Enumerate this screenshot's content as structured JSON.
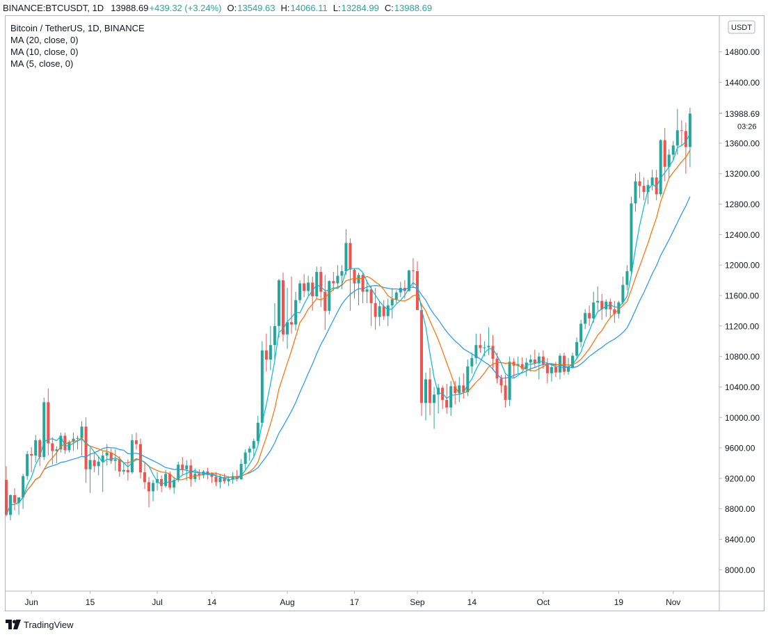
{
  "header": {
    "symbol": "BINANCE:BTCUSDT, 1D",
    "price": "13988.69",
    "change": "+439.32 (+3.24%)",
    "o_label": "O:",
    "o_value": "13549.63",
    "h_label": "H:",
    "h_value": "14066.11",
    "l_label": "L:",
    "l_value": "13284.99",
    "c_label": "C:",
    "c_value": "13988.69"
  },
  "legend": {
    "title": "Bitcoin / TetherUS, 1D, BINANCE",
    "ma20": "MA (20, close, 0)",
    "ma10": "MA (10, close, 0)",
    "ma5": "MA (5, close, 0)"
  },
  "price_scale": {
    "currency": "USDT",
    "last_price": "13988.69",
    "countdown": "03:26"
  },
  "footer": {
    "brand": "TradingView"
  },
  "colors": {
    "up": "#26a69a",
    "down": "#ef5350",
    "ma20": "#2196f3",
    "ma10": "#ff6d00",
    "ma5": "#00bcd4",
    "axis_text": "#131722",
    "grid": "#f0f3fa"
  },
  "chart_data": {
    "type": "candlestick",
    "title": "Bitcoin / TetherUS, 1D, BINANCE",
    "y_ticks": [
      8000,
      8400,
      8800,
      9200,
      9600,
      10000,
      10400,
      10800,
      11200,
      11600,
      12000,
      12400,
      12800,
      13200,
      13600,
      14000,
      14400,
      14800
    ],
    "y_tick_labels": [
      "8000.00",
      "8400.00",
      "8800.00",
      "9200.00",
      "9600.00",
      "10000.00",
      "10400.00",
      "10800.00",
      "11200.00",
      "11600.00",
      "12000.00",
      "12400.00",
      "12800.00",
      "13200.00",
      "13600.00",
      "14000.00",
      "14400.00",
      "14800.00"
    ],
    "x_tick_labels": [
      {
        "label": "Jun",
        "index": 6
      },
      {
        "label": "15",
        "index": 20
      },
      {
        "label": "Jul",
        "index": 36
      },
      {
        "label": "14",
        "index": 49
      },
      {
        "label": "Aug",
        "index": 67
      },
      {
        "label": "17",
        "index": 83
      },
      {
        "label": "Sep",
        "index": 98
      },
      {
        "label": "14",
        "index": 111
      },
      {
        "label": "Oct",
        "index": 128
      },
      {
        "label": "19",
        "index": 146
      },
      {
        "label": "Nov",
        "index": 159
      }
    ],
    "ylim": [
      7720,
      15270
    ],
    "candles": [
      [
        9180,
        9360,
        8700,
        8720
      ],
      [
        8720,
        8990,
        8650,
        8980
      ],
      [
        8980,
        9070,
        8780,
        8880
      ],
      [
        8880,
        8920,
        8720,
        8950
      ],
      [
        8950,
        9260,
        8800,
        9230
      ],
      [
        9230,
        9560,
        9180,
        9520
      ],
      [
        9520,
        9610,
        9280,
        9500
      ],
      [
        9500,
        9770,
        9410,
        9700
      ],
      [
        9700,
        9720,
        9360,
        9480
      ],
      [
        9480,
        10260,
        9440,
        10200
      ],
      [
        10200,
        10380,
        9500,
        9660
      ],
      [
        9660,
        9740,
        9380,
        9560
      ],
      [
        9560,
        9620,
        9400,
        9580
      ],
      [
        9580,
        9800,
        9540,
        9760
      ],
      [
        9760,
        9800,
        9520,
        9570
      ],
      [
        9570,
        9700,
        9540,
        9680
      ],
      [
        9680,
        9800,
        9560,
        9720
      ],
      [
        9720,
        9760,
        9580,
        9730
      ],
      [
        9730,
        9950,
        9500,
        9880
      ],
      [
        9880,
        10000,
        9140,
        9320
      ],
      [
        9320,
        9600,
        9010,
        9440
      ],
      [
        9440,
        9540,
        9280,
        9360
      ],
      [
        9360,
        9480,
        9240,
        9420
      ],
      [
        9420,
        9560,
        9020,
        9500
      ],
      [
        9500,
        9650,
        9370,
        9540
      ],
      [
        9540,
        9590,
        9390,
        9430
      ],
      [
        9430,
        9580,
        9300,
        9450
      ],
      [
        9450,
        9490,
        9220,
        9290
      ],
      [
        9290,
        9400,
        9250,
        9310
      ],
      [
        9310,
        9450,
        9170,
        9280
      ],
      [
        9280,
        9780,
        9260,
        9700
      ],
      [
        9700,
        9800,
        9580,
        9650
      ],
      [
        9650,
        9720,
        9200,
        9280
      ],
      [
        9280,
        9420,
        9060,
        9150
      ],
      [
        9150,
        9220,
        8820,
        9030
      ],
      [
        9030,
        9180,
        8900,
        9140
      ],
      [
        9140,
        9280,
        9040,
        9190
      ],
      [
        9190,
        9240,
        9020,
        9100
      ],
      [
        9100,
        9310,
        9080,
        9260
      ],
      [
        9260,
        9290,
        9050,
        9080
      ],
      [
        9080,
        9220,
        9000,
        9180
      ],
      [
        9180,
        9420,
        9150,
        9380
      ],
      [
        9380,
        9480,
        9240,
        9320
      ],
      [
        9320,
        9440,
        9170,
        9370
      ],
      [
        9370,
        9450,
        9090,
        9190
      ],
      [
        9190,
        9330,
        9150,
        9260
      ],
      [
        9260,
        9320,
        9180,
        9240
      ],
      [
        9240,
        9310,
        9200,
        9290
      ],
      [
        9290,
        9340,
        9190,
        9250
      ],
      [
        9250,
        9280,
        9140,
        9220
      ],
      [
        9220,
        9280,
        9100,
        9150
      ],
      [
        9150,
        9260,
        9070,
        9210
      ],
      [
        9210,
        9260,
        9130,
        9160
      ],
      [
        9160,
        9230,
        9100,
        9190
      ],
      [
        9190,
        9280,
        9130,
        9230
      ],
      [
        9230,
        9310,
        9160,
        9190
      ],
      [
        9190,
        9450,
        9180,
        9390
      ],
      [
        9390,
        9580,
        9320,
        9540
      ],
      [
        9540,
        9620,
        9430,
        9590
      ],
      [
        9590,
        9720,
        9490,
        9690
      ],
      [
        9690,
        10020,
        9640,
        9930
      ],
      [
        9930,
        11000,
        9880,
        10880
      ],
      [
        10880,
        11100,
        10600,
        10760
      ],
      [
        10760,
        11200,
        10620,
        10950
      ],
      [
        10950,
        11500,
        10760,
        11200
      ],
      [
        11200,
        11820,
        11050,
        11800
      ],
      [
        11800,
        11900,
        11000,
        11090
      ],
      [
        11090,
        11700,
        10900,
        11250
      ],
      [
        11250,
        11850,
        11100,
        11220
      ],
      [
        11220,
        11650,
        11140,
        11540
      ],
      [
        11540,
        11800,
        11500,
        11760
      ],
      [
        11760,
        11880,
        11580,
        11660
      ],
      [
        11660,
        11860,
        11600,
        11770
      ],
      [
        11770,
        11850,
        11400,
        11590
      ],
      [
        11590,
        11980,
        11550,
        11910
      ],
      [
        11910,
        11980,
        11450,
        11650
      ],
      [
        11650,
        11870,
        11150,
        11400
      ],
      [
        11400,
        11800,
        11350,
        11790
      ],
      [
        11790,
        11910,
        11660,
        11760
      ],
      [
        11760,
        12000,
        11700,
        11860
      ],
      [
        11860,
        12000,
        11680,
        11920
      ],
      [
        11920,
        12470,
        11870,
        12290
      ],
      [
        12290,
        12350,
        11400,
        11940
      ],
      [
        11940,
        11960,
        11560,
        11760
      ],
      [
        11760,
        11900,
        11470,
        11870
      ],
      [
        11870,
        11890,
        11500,
        11650
      ],
      [
        11650,
        11800,
        11500,
        11680
      ],
      [
        11680,
        11730,
        11200,
        11500
      ],
      [
        11500,
        11700,
        11150,
        11320
      ],
      [
        11320,
        11530,
        11200,
        11460
      ],
      [
        11460,
        11540,
        11280,
        11330
      ],
      [
        11330,
        11560,
        11200,
        11470
      ],
      [
        11470,
        11700,
        11300,
        11550
      ],
      [
        11550,
        11670,
        11500,
        11640
      ],
      [
        11640,
        11780,
        11580,
        11700
      ],
      [
        11700,
        11800,
        11560,
        11660
      ],
      [
        11660,
        11940,
        11650,
        11930
      ],
      [
        11930,
        12090,
        11700,
        11920
      ],
      [
        11920,
        12050,
        11440,
        11410
      ],
      [
        11410,
        11500,
        10020,
        10190
      ],
      [
        10190,
        10590,
        9960,
        10500
      ],
      [
        10500,
        10650,
        10030,
        10190
      ],
      [
        10190,
        10400,
        9850,
        10300
      ],
      [
        10300,
        10440,
        10050,
        10390
      ],
      [
        10390,
        10420,
        10110,
        10230
      ],
      [
        10230,
        10440,
        10050,
        10130
      ],
      [
        10130,
        10480,
        10020,
        10410
      ],
      [
        10410,
        10480,
        10170,
        10320
      ],
      [
        10320,
        10530,
        10200,
        10420
      ],
      [
        10420,
        10580,
        10250,
        10330
      ],
      [
        10330,
        10760,
        10280,
        10670
      ],
      [
        10670,
        10850,
        10580,
        10780
      ],
      [
        10780,
        11100,
        10700,
        10950
      ],
      [
        10950,
        11100,
        10850,
        10910
      ],
      [
        10910,
        11000,
        10800,
        10920
      ],
      [
        10920,
        11180,
        10820,
        10940
      ],
      [
        10940,
        11080,
        10620,
        10770
      ],
      [
        10770,
        10850,
        10450,
        10510
      ],
      [
        10510,
        10560,
        10320,
        10420
      ],
      [
        10420,
        10560,
        10130,
        10230
      ],
      [
        10230,
        10800,
        10150,
        10730
      ],
      [
        10730,
        10780,
        10520,
        10680
      ],
      [
        10680,
        10800,
        10580,
        10700
      ],
      [
        10700,
        10790,
        10620,
        10640
      ],
      [
        10640,
        10780,
        10540,
        10720
      ],
      [
        10720,
        10820,
        10600,
        10760
      ],
      [
        10760,
        10890,
        10650,
        10710
      ],
      [
        10710,
        10850,
        10500,
        10800
      ],
      [
        10800,
        10880,
        10640,
        10700
      ],
      [
        10700,
        10780,
        10450,
        10580
      ],
      [
        10580,
        10710,
        10470,
        10660
      ],
      [
        10660,
        10730,
        10530,
        10590
      ],
      [
        10590,
        10840,
        10500,
        10810
      ],
      [
        10810,
        10850,
        10560,
        10600
      ],
      [
        10600,
        10780,
        10560,
        10660
      ],
      [
        10660,
        10850,
        10640,
        10810
      ],
      [
        10810,
        11050,
        10760,
        10990
      ],
      [
        10990,
        11280,
        10920,
        11230
      ],
      [
        11230,
        11420,
        11160,
        11370
      ],
      [
        11370,
        11470,
        11200,
        11300
      ],
      [
        11300,
        11650,
        11240,
        11510
      ],
      [
        11510,
        11720,
        11400,
        11530
      ],
      [
        11530,
        11620,
        11280,
        11420
      ],
      [
        11420,
        11550,
        11320,
        11520
      ],
      [
        11520,
        11560,
        11300,
        11420
      ],
      [
        11420,
        11530,
        11240,
        11360
      ],
      [
        11360,
        11530,
        11300,
        11510
      ],
      [
        11510,
        11850,
        11480,
        11740
      ],
      [
        11740,
        12000,
        11670,
        11920
      ],
      [
        11920,
        12900,
        11870,
        12810
      ],
      [
        12810,
        13200,
        12700,
        13100
      ],
      [
        13100,
        13220,
        12880,
        13040
      ],
      [
        13040,
        13150,
        12850,
        12960
      ],
      [
        12960,
        13120,
        12800,
        13050
      ],
      [
        13050,
        13250,
        12980,
        13150
      ],
      [
        13150,
        13250,
        12850,
        12930
      ],
      [
        12930,
        13650,
        12900,
        13640
      ],
      [
        13640,
        13800,
        13100,
        13290
      ],
      [
        13290,
        13520,
        13130,
        13450
      ],
      [
        13450,
        13630,
        13380,
        13570
      ],
      [
        13570,
        14050,
        13450,
        13770
      ],
      [
        13770,
        13900,
        13560,
        13760
      ],
      [
        13760,
        13870,
        13200,
        13550
      ],
      [
        13549.63,
        14066.11,
        13284.99,
        13988.69
      ]
    ]
  }
}
